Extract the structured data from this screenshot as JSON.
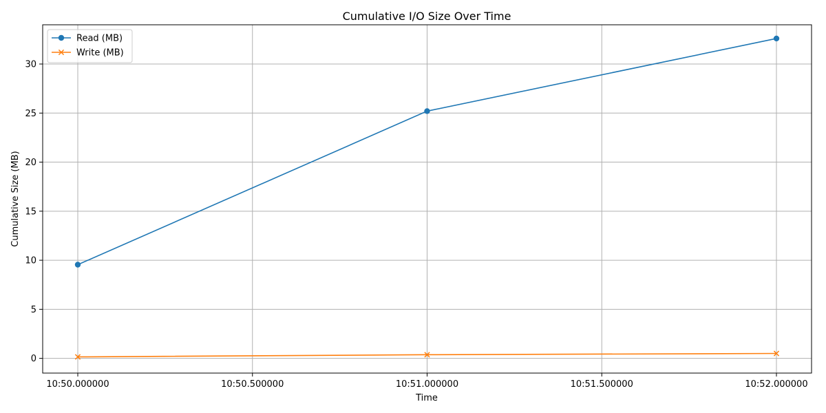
{
  "chart_data": {
    "type": "line",
    "title": "Cumulative I/O Size Over Time",
    "xlabel": "Time",
    "ylabel": "Cumulative Size (MB)",
    "x": [
      "10:50:00",
      "10:51:00",
      "10:52:00"
    ],
    "x_ticks": [
      "10:50.000000",
      "10:50.500000",
      "10:51.000000",
      "10:51.500000",
      "10:52.000000"
    ],
    "ylim": [
      -1.5,
      34
    ],
    "y_ticks": [
      0,
      5,
      10,
      15,
      20,
      25,
      30
    ],
    "grid": true,
    "legend_position": "top-left",
    "series": [
      {
        "name": "Read (MB)",
        "values": [
          9.55,
          25.2,
          32.6
        ],
        "color": "#1f77b4",
        "marker": "circle"
      },
      {
        "name": "Write (MB)",
        "values": [
          0.15,
          0.37,
          0.5
        ],
        "color": "#ff7f0e",
        "marker": "x"
      }
    ]
  }
}
